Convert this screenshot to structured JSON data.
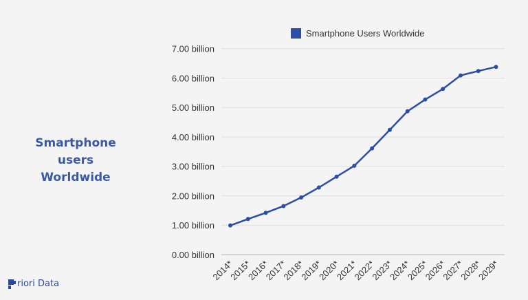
{
  "side_title": [
    "Smartphone users",
    "Worldwide"
  ],
  "logo_text": "Priori Data",
  "chart_data": {
    "type": "line",
    "title": "",
    "xlabel": "",
    "ylabel": "",
    "legend": {
      "position": "top",
      "entries": [
        "Smartphone Users Worldwide"
      ]
    },
    "categories": [
      "2014*",
      "2015*",
      "2016*",
      "2017*",
      "2018*",
      "2019*",
      "2020*",
      "2021*",
      "2022*",
      "2023*",
      "2024*",
      "2025*",
      "2026*",
      "2027*",
      "2028*",
      "2029*"
    ],
    "series": [
      {
        "name": "Smartphone Users Worldwide",
        "color": "#2b4ea5",
        "values": [
          0.99,
          1.21,
          1.42,
          1.65,
          1.94,
          2.28,
          2.65,
          3.02,
          3.61,
          4.24,
          4.87,
          5.27,
          5.63,
          6.09,
          6.24,
          6.38
        ]
      }
    ],
    "ylim": [
      0,
      7
    ],
    "yticks": [
      "0.00 billion",
      "1.00 billion",
      "2.00 billion",
      "3.00 billion",
      "4.00 billion",
      "5.00 billion",
      "6.00 billion",
      "7.00 billion"
    ],
    "grid": true,
    "unit": "billion"
  }
}
